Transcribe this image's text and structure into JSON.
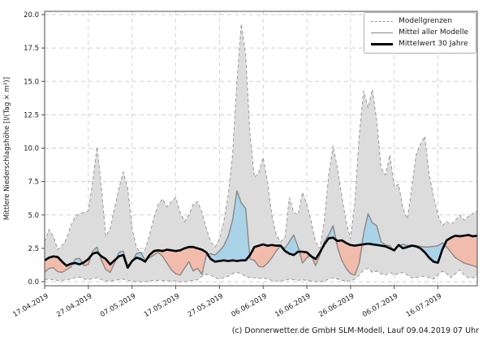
{
  "figure": {
    "y_axis": {
      "label": "Mittlere Niederschlagshöhe [l/(Tag × m²)]",
      "tick_labels": [
        "0.0",
        "2.5",
        "5.0",
        "7.5",
        "10.0",
        "12.5",
        "15.0",
        "17.5",
        "20.0"
      ],
      "tick_values": [
        0,
        2.5,
        5,
        7.5,
        10,
        12.5,
        15,
        17.5,
        20
      ],
      "min": 0,
      "max": 20
    },
    "x_axis": {
      "tick_labels": [
        "17.04.2019",
        "27.04.2019",
        "07.05.2019",
        "17.05.2019",
        "27.05.2019",
        "06.06.2019",
        "16.06.2019",
        "26.06.2019",
        "06.07.2019",
        "16.07.2019"
      ],
      "tick_days": [
        0,
        10,
        20,
        30,
        40,
        50,
        60,
        70,
        80,
        90
      ]
    },
    "legend": [
      {
        "label": "Modellgrenzen",
        "style": "dash"
      },
      {
        "label": "Mittel aller Modelle",
        "style": "solid"
      },
      {
        "label": "Mittelwert 30 Jahre",
        "style": "thick"
      }
    ],
    "footer": "(c) Donnerwetter.de GmbH SLM-Modell, Lauf 09.04.2019 07 Uhr"
  },
  "chart_data": {
    "type": "line",
    "title": "",
    "xlabel": "",
    "ylabel": "Mittlere Niederschlagshöhe [l/(Tag × m²)]",
    "ylim": [
      0,
      20
    ],
    "grid": true,
    "legend_position": "upper right",
    "x_note": "daily values, day 0 = 17.04.2019, 100 points ending 25.07.2019",
    "fills": {
      "band": "between Modellgrenzen oben/unten",
      "blue": "Mittel aller Modelle above Mittelwert 30 Jahre",
      "pink": "Mittel aller Modelle below Mittelwert 30 Jahre"
    },
    "colors": {
      "band_fill": "#dcdcdc",
      "bound_line": "#999999",
      "mean_line": "#888888",
      "mean30_line": "#000000",
      "above_fill": "#abd3e8",
      "below_fill": "#f2bcad",
      "grid": "#cfcfcf",
      "spine": "#4d4d4d"
    },
    "series": [
      {
        "name": "Modellgrenze oben (max)",
        "values": [
          3.0,
          3.9,
          3.4,
          2.4,
          2.7,
          3.2,
          4.2,
          4.9,
          5.1,
          5.2,
          5.3,
          7.5,
          10.1,
          7.0,
          3.4,
          4.0,
          5.5,
          7.0,
          8.2,
          7.0,
          4.0,
          2.6,
          2.1,
          2.4,
          3.5,
          4.8,
          5.8,
          6.2,
          5.6,
          6.0,
          6.3,
          5.2,
          4.5,
          5.0,
          5.8,
          6.0,
          5.2,
          4.0,
          3.0,
          2.6,
          3.2,
          4.5,
          6.5,
          9.5,
          15.0,
          19.3,
          17.0,
          11.0,
          7.8,
          8.2,
          9.3,
          7.5,
          5.0,
          3.5,
          3.0,
          3.3,
          6.3,
          5.2,
          5.0,
          6.7,
          5.8,
          4.5,
          3.0,
          2.5,
          4.5,
          8.0,
          10.2,
          8.5,
          6.4,
          4.5,
          3.2,
          6.0,
          11.0,
          14.3,
          13.0,
          14.4,
          12.0,
          8.5,
          8.0,
          9.5,
          7.1,
          7.3,
          5.5,
          4.7,
          7.0,
          9.5,
          10.3,
          10.9,
          8.0,
          6.4,
          5.0,
          4.2,
          4.5,
          4.3,
          4.6,
          5.0,
          4.6,
          4.9,
          5.1,
          5.3
        ]
      },
      {
        "name": "Modellgrenze unten (min)",
        "values": [
          0.15,
          0.2,
          0.15,
          0.1,
          0.1,
          0.15,
          0.2,
          0.3,
          0.35,
          0.2,
          0.15,
          0.25,
          0.3,
          0.15,
          0.05,
          0.05,
          0.1,
          0.15,
          0.2,
          0.1,
          0.05,
          0,
          0,
          0,
          0.05,
          0.1,
          0.1,
          0.1,
          0.05,
          0.05,
          0.05,
          0,
          0,
          0.05,
          0.1,
          0.15,
          0.4,
          0.55,
          0.5,
          0.3,
          0.2,
          0.3,
          0.4,
          0.6,
          0.7,
          0.6,
          0.4,
          0.3,
          0.3,
          0.25,
          0.3,
          0.2,
          0.1,
          0.05,
          0.05,
          0.1,
          0.2,
          0.15,
          0.1,
          0.15,
          0.1,
          0.05,
          0,
          0,
          0.05,
          0.2,
          0.3,
          0.2,
          0.1,
          0.05,
          0.05,
          0.2,
          0.5,
          0.9,
          1.0,
          0.7,
          0.8,
          0.6,
          0.5,
          0.7,
          0.5,
          0.6,
          0.7,
          0.5,
          0.3,
          0.3,
          0.4,
          0.4,
          0.3,
          0.2,
          0.5,
          0.8,
          0.6,
          0.3,
          0.6,
          0.9,
          0.5,
          0.3,
          0.3,
          0.4
        ]
      },
      {
        "name": "Mittel aller Modelle",
        "values": [
          0.7,
          1.0,
          1.05,
          0.75,
          0.7,
          0.9,
          1.1,
          1.7,
          1.75,
          1.2,
          1.3,
          2.3,
          2.6,
          1.6,
          0.9,
          0.7,
          1.4,
          2.2,
          2.3,
          1.2,
          1.5,
          2.1,
          2.2,
          1.6,
          1.8,
          2.0,
          2.2,
          1.9,
          1.4,
          0.9,
          0.6,
          0.5,
          1.0,
          1.5,
          0.8,
          1.0,
          0.55,
          2.0,
          2.1,
          2.0,
          2.3,
          2.7,
          3.4,
          4.6,
          6.8,
          5.9,
          5.5,
          1.7,
          1.6,
          1.15,
          1.1,
          1.4,
          1.8,
          2.3,
          2.7,
          2.5,
          3.0,
          3.5,
          2.6,
          1.4,
          1.8,
          2.0,
          1.2,
          2.0,
          3.0,
          3.5,
          4.2,
          2.6,
          1.6,
          1.0,
          0.6,
          0.5,
          1.4,
          3.6,
          5.1,
          4.4,
          4.2,
          3.0,
          2.75,
          2.7,
          2.3,
          2.7,
          2.8,
          2.7,
          2.75,
          2.7,
          2.65,
          2.6,
          2.6,
          2.65,
          2.7,
          2.9,
          2.6,
          2.2,
          1.8,
          1.6,
          1.4,
          1.3,
          1.2,
          1.1
        ]
      },
      {
        "name": "Mittelwert 30 Jahre",
        "values": [
          1.6,
          1.8,
          1.9,
          1.85,
          1.5,
          1.2,
          1.35,
          1.4,
          1.3,
          1.45,
          1.7,
          2.1,
          2.2,
          1.9,
          1.7,
          1.3,
          1.6,
          1.9,
          2.0,
          1.05,
          1.55,
          1.8,
          1.7,
          1.5,
          2.0,
          2.3,
          2.35,
          2.3,
          2.4,
          2.35,
          2.3,
          2.35,
          2.5,
          2.6,
          2.6,
          2.5,
          2.4,
          2.2,
          1.7,
          1.5,
          1.55,
          1.6,
          1.55,
          1.6,
          1.55,
          1.6,
          1.6,
          2.0,
          2.6,
          2.7,
          2.8,
          2.7,
          2.75,
          2.7,
          2.7,
          2.3,
          2.1,
          2.0,
          2.25,
          2.25,
          2.2,
          1.9,
          1.7,
          2.2,
          2.8,
          3.25,
          3.3,
          3.05,
          3.1,
          2.9,
          2.75,
          2.7,
          2.75,
          2.8,
          2.85,
          2.8,
          2.75,
          2.7,
          2.65,
          2.5,
          2.35,
          2.75,
          2.5,
          2.6,
          2.7,
          2.65,
          2.5,
          2.2,
          1.8,
          1.5,
          1.42,
          2.4,
          3.1,
          3.3,
          3.45,
          3.4,
          3.45,
          3.5,
          3.4,
          3.45
        ]
      }
    ]
  }
}
